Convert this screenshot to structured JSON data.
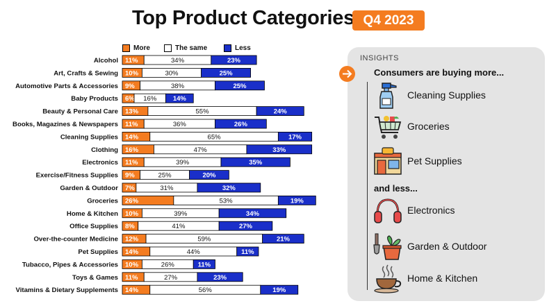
{
  "title": "Top Product Categories",
  "badge": "Q4 2023",
  "legend": {
    "more": "More",
    "same": "The same",
    "less": "Less"
  },
  "colors": {
    "more": "#f47c20",
    "same": "#ffffff",
    "less": "#1a2fc9",
    "accent": "#f47c20"
  },
  "chart_data": {
    "type": "bar",
    "stacked": true,
    "orientation": "horizontal",
    "categories": [
      "Alcohol",
      "Art, Crafts & Sewing",
      "Automotive Parts & Accessories",
      "Baby Products",
      "Beauty & Personal Care",
      "Books, Magazines & Newspapers",
      "Cleaning Supplies",
      "Clothing",
      "Electronics",
      "Exercise/Fitness Supplies",
      "Garden & Outdoor",
      "Groceries",
      "Home & Kitchen",
      "Office Supplies",
      "Over-the-counter Medicine",
      "Pet Supplies",
      "Tubacco, Pipes & Accessories",
      "Toys & Games",
      "Vitamins & Dietary Supplements"
    ],
    "series": [
      {
        "name": "More",
        "values": [
          11,
          10,
          9,
          6,
          13,
          11,
          14,
          16,
          11,
          9,
          7,
          26,
          10,
          8,
          12,
          14,
          10,
          11,
          14
        ]
      },
      {
        "name": "The same",
        "values": [
          34,
          30,
          38,
          16,
          55,
          36,
          65,
          47,
          39,
          25,
          31,
          53,
          39,
          41,
          59,
          44,
          26,
          27,
          56
        ]
      },
      {
        "name": "Less",
        "values": [
          23,
          25,
          25,
          14,
          24,
          26,
          17,
          33,
          35,
          20,
          32,
          19,
          34,
          27,
          21,
          11,
          11,
          23,
          19
        ]
      }
    ],
    "value_suffix": "%",
    "legend_position": "top"
  },
  "insights": {
    "label": "INSIGHTS",
    "more_heading": "Consumers are buying more...",
    "less_heading": "and less...",
    "more_items": [
      {
        "label": "Cleaning Supplies",
        "icon": "spray-bottle-icon"
      },
      {
        "label": "Groceries",
        "icon": "shopping-cart-icon"
      },
      {
        "label": "Pet Supplies",
        "icon": "pet-store-icon"
      }
    ],
    "less_items": [
      {
        "label": "Electronics",
        "icon": "headphones-icon"
      },
      {
        "label": "Garden & Outdoor",
        "icon": "potted-plant-icon"
      },
      {
        "label": "Home & Kitchen",
        "icon": "coffee-cup-icon"
      }
    ]
  }
}
